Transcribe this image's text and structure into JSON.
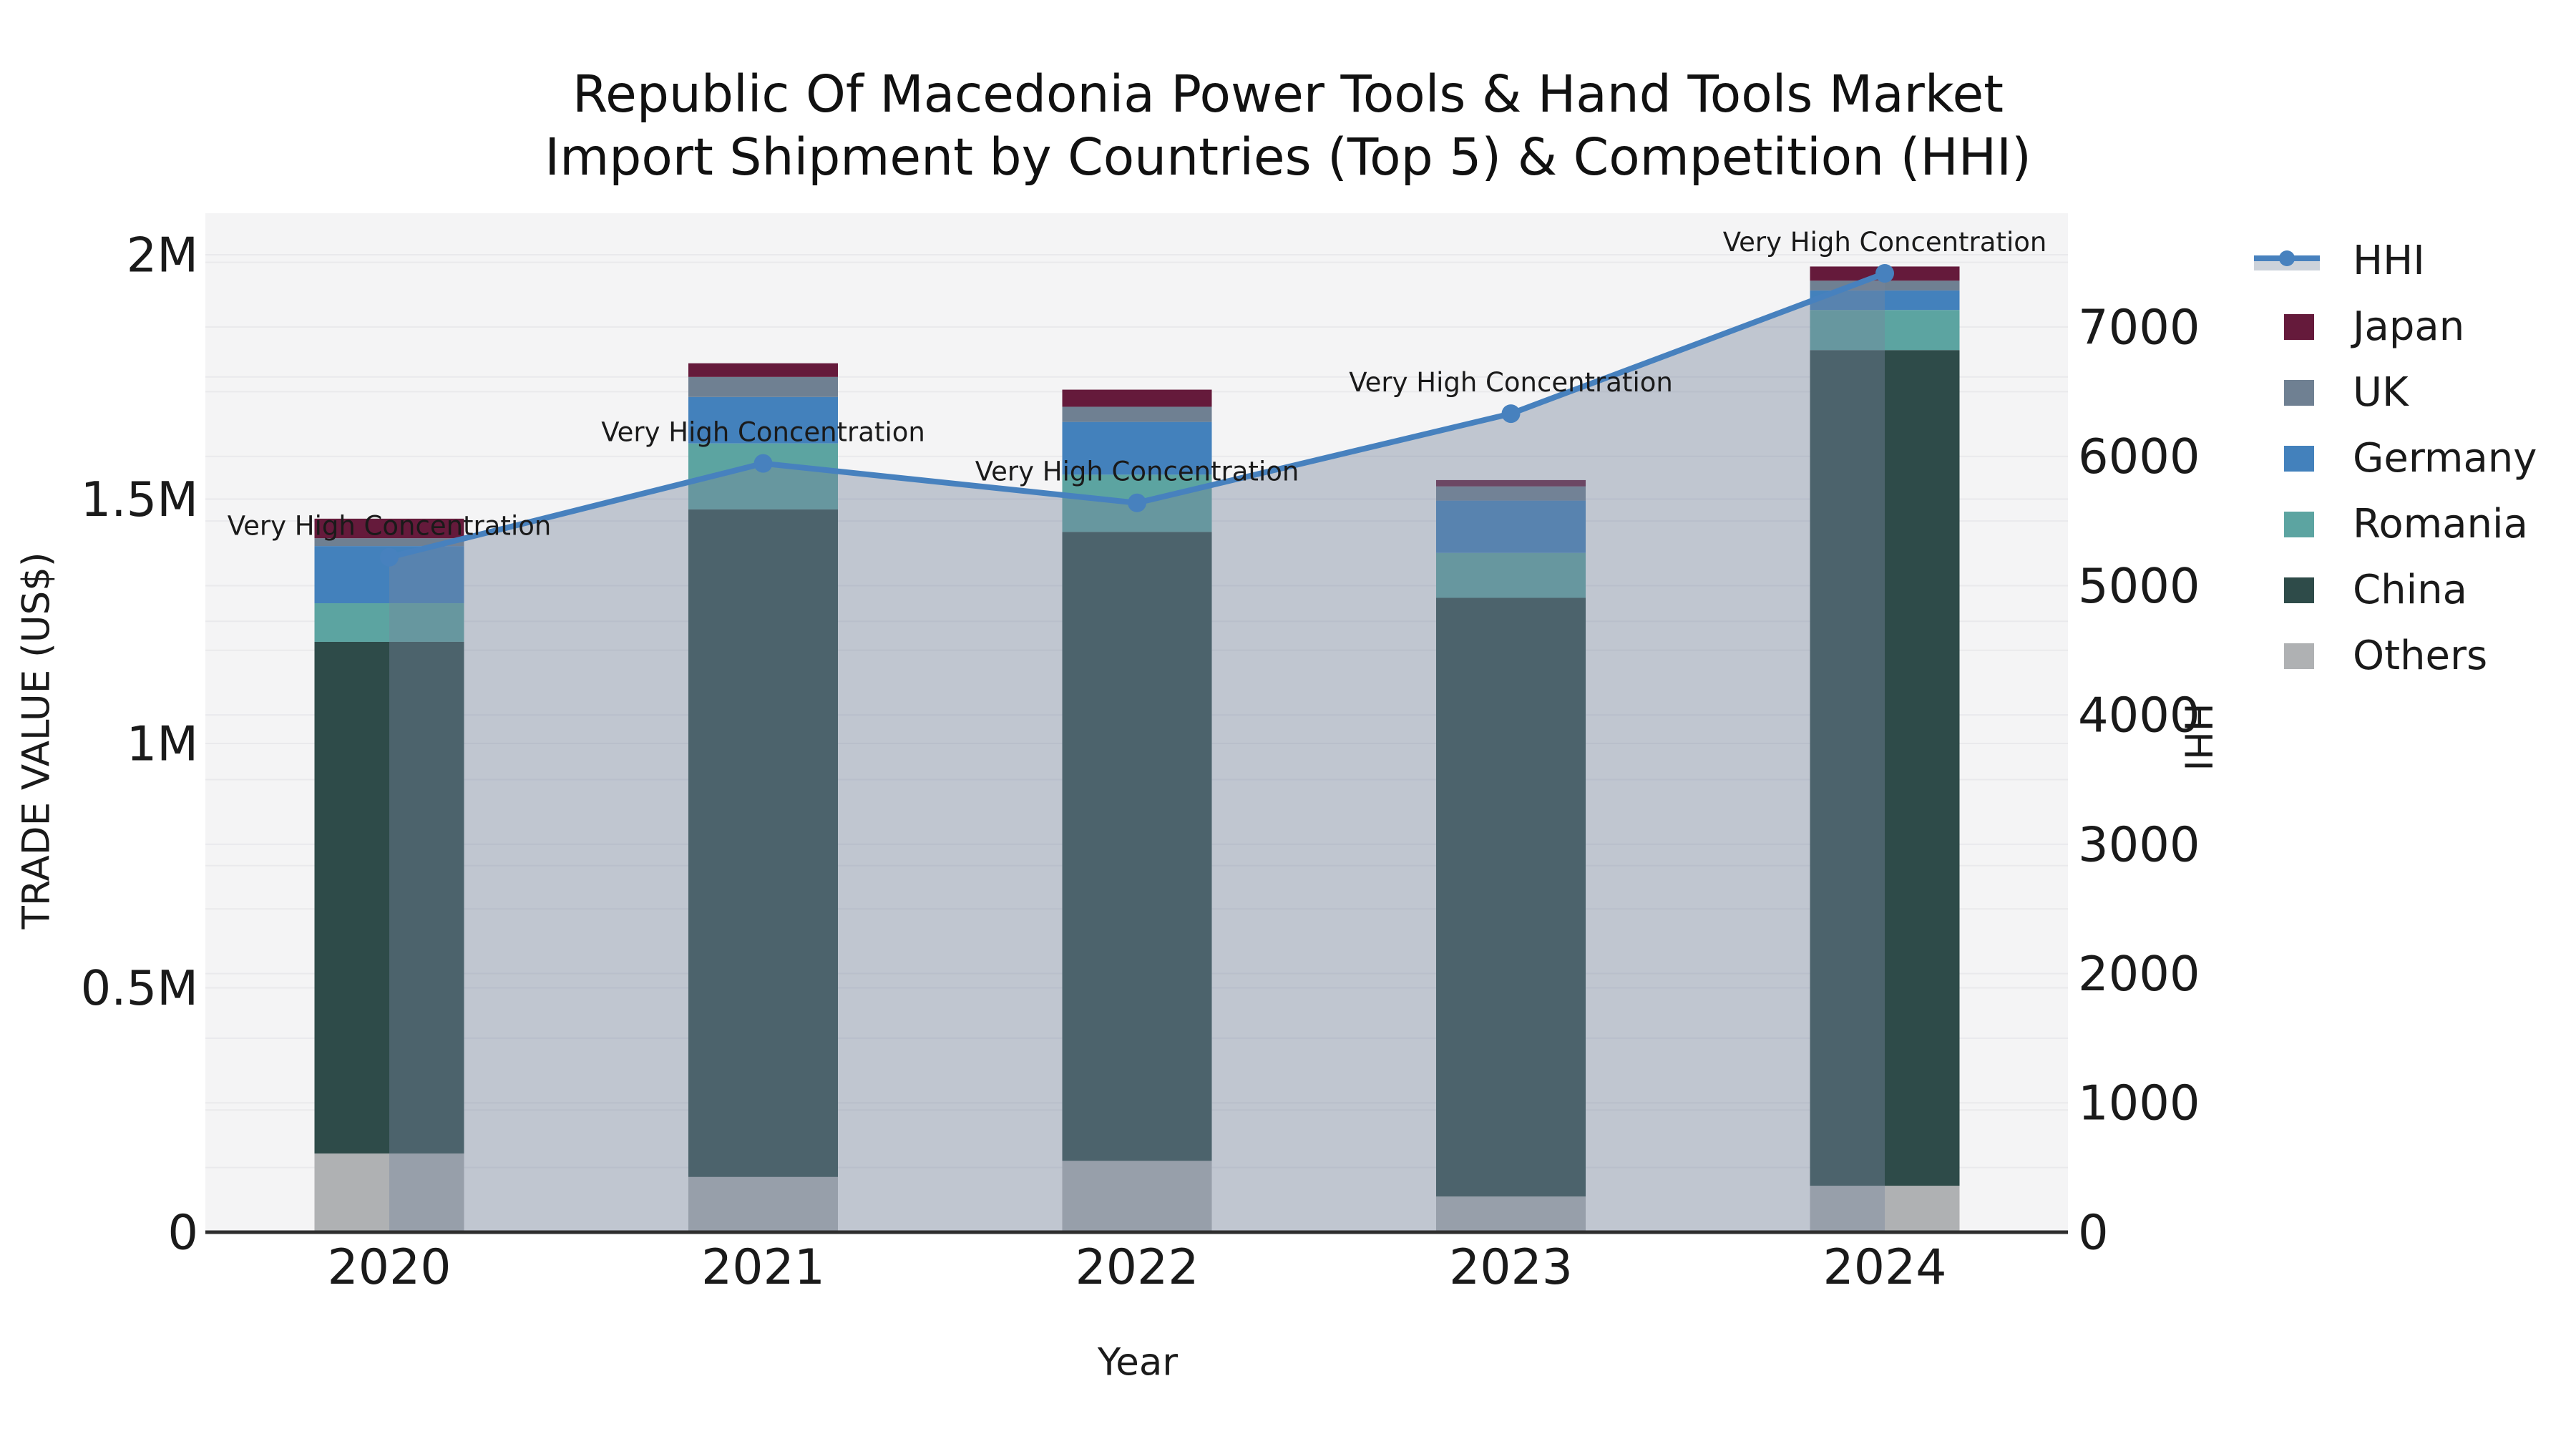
{
  "title": {
    "line1": "Republic Of Macedonia Power Tools & Hand Tools Market",
    "line2": "Import Shipment by Countries (Top 5) & Competition (HHI)"
  },
  "axes": {
    "x": {
      "label": "Year",
      "tick_labels": [
        "2020",
        "2021",
        "2022",
        "2023",
        "2024"
      ]
    },
    "y_left": {
      "label": "TRADE VALUE (US$)",
      "tick_labels": [
        "0",
        "0.5M",
        "1M",
        "1.5M",
        "2M"
      ],
      "tick_values": [
        0,
        500000,
        1000000,
        1500000,
        2000000
      ]
    },
    "y_right": {
      "label": "HHI",
      "tick_labels": [
        "0",
        "1000",
        "2000",
        "3000",
        "4000",
        "5000",
        "6000",
        "7000"
      ],
      "tick_values": [
        0,
        1000,
        2000,
        3000,
        4000,
        5000,
        6000,
        7000
      ]
    }
  },
  "legend": [
    {
      "label": "HHI",
      "type": "line",
      "color": "#4781BE"
    },
    {
      "label": "Japan",
      "type": "square",
      "color": "#651A3B"
    },
    {
      "label": "UK",
      "type": "square",
      "color": "#6F8092"
    },
    {
      "label": "Germany",
      "type": "square",
      "color": "#4381BC"
    },
    {
      "label": "Romania",
      "type": "square",
      "color": "#5CA4A1"
    },
    {
      "label": "China",
      "type": "square",
      "color": "#2E4B49"
    },
    {
      "label": "Others",
      "type": "square",
      "color": "#AFB1B3"
    }
  ],
  "chart_data": {
    "type": "bar",
    "subtype": "stacked-bar-with-line",
    "categories": [
      "2020",
      "2021",
      "2022",
      "2023",
      "2024"
    ],
    "bar_value_unit": "US$ trade value",
    "series": [
      {
        "name": "Others",
        "color": "#AFB1B3",
        "values": [
          161000,
          113000,
          146000,
          73000,
          95000
        ]
      },
      {
        "name": "China",
        "color": "#2E4B49",
        "values": [
          1047000,
          1366000,
          1287000,
          1225000,
          1710000
        ]
      },
      {
        "name": "Romania",
        "color": "#5CA4A1",
        "values": [
          79000,
          135000,
          117000,
          92000,
          82000
        ]
      },
      {
        "name": "Germany",
        "color": "#4381BC",
        "values": [
          117000,
          95000,
          108000,
          107000,
          40000
        ]
      },
      {
        "name": "UK",
        "color": "#6F8092",
        "values": [
          16000,
          41000,
          31000,
          29000,
          20000
        ]
      },
      {
        "name": "Japan",
        "color": "#651A3B",
        "values": [
          40000,
          28000,
          35000,
          13000,
          29000
        ]
      }
    ],
    "stack_order_bottom_to_top": [
      "Others",
      "China",
      "Romania",
      "Germany",
      "UK",
      "Japan"
    ],
    "line_series": {
      "name": "HHI",
      "color": "#4781BE",
      "area_fill": "rgba(118,134,158,0.42)",
      "values": [
        5220,
        5945,
        5640,
        6330,
        7415
      ]
    },
    "annotations": [
      {
        "category": "2020",
        "text": "Very High Concentration"
      },
      {
        "category": "2021",
        "text": "Very High Concentration"
      },
      {
        "category": "2022",
        "text": "Very High Concentration"
      },
      {
        "category": "2023",
        "text": "Very High Concentration"
      },
      {
        "category": "2024",
        "text": "Very High Concentration"
      }
    ],
    "ylim_left": [
      0,
      2085000
    ],
    "ylim_right": [
      0,
      7880
    ],
    "xlabel": "Year",
    "ylabel_left": "TRADE VALUE (US$)",
    "ylabel_right": "HHI",
    "grid": true,
    "legend_position": "right",
    "plot_background": "#F4F4F5"
  }
}
